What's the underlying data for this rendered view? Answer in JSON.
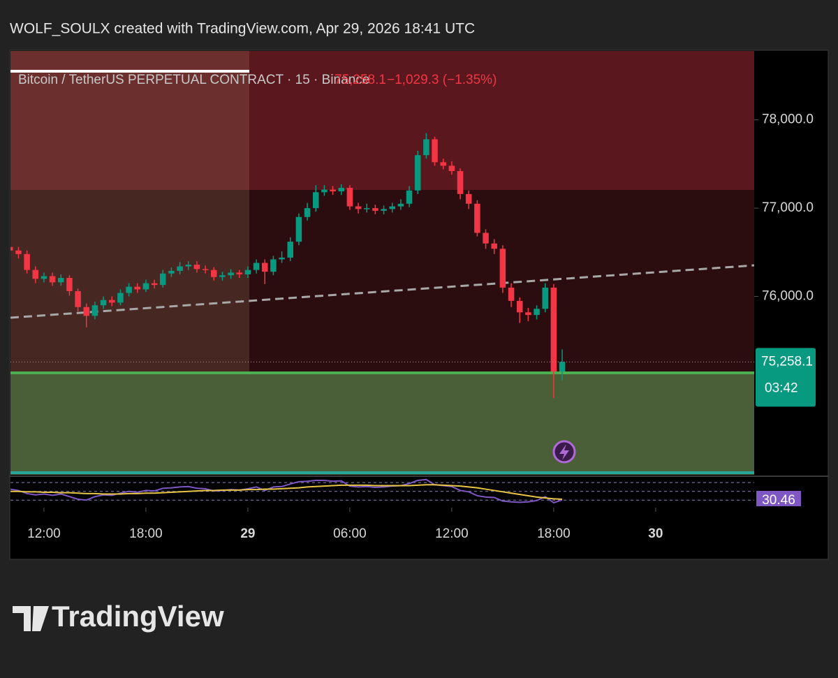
{
  "header": {
    "credit": "WOLF_SOULX created with TradingView.com, Apr 29, 2026 18:41 UTC"
  },
  "footer": {
    "brand": "TradingView"
  },
  "chart_data": {
    "type": "candlestick",
    "legend": {
      "symbol": "Bitcoin / TetherUS PERPETUAL CONTRACT · 15 · Binance",
      "price": "75,258.1",
      "change": "−1,029.3 (−1.35%)"
    },
    "last_price_label": "75,258.1",
    "countdown": "03:42",
    "up_color": "#089981",
    "down_color": "#f23645",
    "x": [
      10,
      10.5,
      11,
      11.5,
      12,
      12.5,
      13,
      13.5,
      14,
      14.5,
      15,
      15.5,
      16,
      16.5,
      17,
      17.5,
      18,
      18.5,
      19,
      19.5,
      20,
      20.5,
      21,
      21.5,
      22,
      22.5,
      23,
      23.5,
      24,
      24.5,
      25,
      25.5,
      26,
      26.5,
      27,
      27.5,
      28,
      28.5,
      29,
      29.5,
      30,
      30.5,
      31,
      31.5,
      32,
      32.5,
      33,
      33.5,
      34,
      34.5,
      35,
      35.5,
      36,
      36.5,
      37,
      37.5,
      38,
      38.5,
      39,
      39.5,
      40,
      40.5,
      41,
      41.5,
      42,
      42.5
    ],
    "open": [
      76560,
      76520,
      76480,
      76300,
      76200,
      76230,
      76160,
      76210,
      76060,
      75880,
      75780,
      75900,
      75960,
      75930,
      76040,
      76110,
      76080,
      76150,
      76130,
      76260,
      76290,
      76340,
      76360,
      76310,
      76300,
      76220,
      76240,
      76270,
      76250,
      76300,
      76380,
      76280,
      76420,
      76440,
      76620,
      76900,
      77000,
      77180,
      77210,
      77190,
      77230,
      77020,
      76990,
      77000,
      76970,
      76990,
      77020,
      77050,
      77200,
      77600,
      77780,
      77520,
      77480,
      77420,
      77160,
      77050,
      76720,
      76600,
      76540,
      76100,
      75950,
      75820,
      75790,
      75860,
      76100,
      75150
    ],
    "high": [
      76610,
      76560,
      76520,
      76340,
      76270,
      76270,
      76250,
      76240,
      76090,
      75920,
      75940,
      76000,
      76000,
      76080,
      76150,
      76150,
      76190,
      76190,
      76300,
      76330,
      76390,
      76400,
      76400,
      76350,
      76330,
      76280,
      76310,
      76300,
      76340,
      76420,
      76420,
      76460,
      76510,
      76670,
      76940,
      77060,
      77260,
      77260,
      77250,
      77270,
      77260,
      77060,
      77050,
      77040,
      77030,
      77060,
      77100,
      77250,
      77650,
      77850,
      77810,
      77560,
      77530,
      77450,
      77200,
      77090,
      76760,
      76650,
      76580,
      76150,
      75990,
      75870,
      75900,
      76150,
      76140,
      75400
    ],
    "low": [
      76470,
      76430,
      76260,
      76150,
      76160,
      76120,
      76120,
      76010,
      75830,
      75650,
      75740,
      75860,
      75890,
      75900,
      76000,
      76040,
      76050,
      76090,
      76100,
      76220,
      76250,
      76300,
      76270,
      76260,
      76180,
      76180,
      76200,
      76210,
      76210,
      76260,
      76140,
      76240,
      76380,
      76400,
      76580,
      76860,
      76960,
      77140,
      77150,
      77150,
      76980,
      76940,
      76950,
      76930,
      76930,
      76950,
      76980,
      77010,
      77160,
      77560,
      77480,
      77440,
      77380,
      77100,
      76990,
      76680,
      76540,
      76480,
      76040,
      75880,
      75700,
      75720,
      75740,
      75820,
      74850,
      75050
    ],
    "close": [
      76520,
      76480,
      76300,
      76200,
      76230,
      76160,
      76210,
      76060,
      75880,
      75780,
      75900,
      75960,
      75930,
      76040,
      76110,
      76080,
      76150,
      76130,
      76260,
      76290,
      76340,
      76360,
      76310,
      76300,
      76220,
      76240,
      76270,
      76250,
      76300,
      76380,
      76280,
      76420,
      76440,
      76620,
      76900,
      77000,
      77180,
      77210,
      77190,
      77230,
      77020,
      76990,
      77000,
      76970,
      76990,
      77020,
      77050,
      77200,
      77600,
      77780,
      77520,
      77480,
      77420,
      77160,
      77050,
      76720,
      76600,
      76540,
      76100,
      75950,
      75820,
      75790,
      75860,
      76100,
      75150,
      75258.1
    ],
    "xlim": [
      10.03,
      53.8
    ],
    "xticks": [
      {
        "value": 12,
        "label": "12:00"
      },
      {
        "value": 18,
        "label": "18:00"
      },
      {
        "value": 24,
        "label": "29"
      },
      {
        "value": 30,
        "label": "06:00"
      },
      {
        "value": 36,
        "label": "12:00"
      },
      {
        "value": 42,
        "label": "18:00"
      },
      {
        "value": 48,
        "label": "30"
      }
    ],
    "ylim": [
      73980,
      78780
    ],
    "yticks": [
      {
        "value": 76000,
        "label": "76,000.0"
      },
      {
        "value": 77000,
        "label": "77,000.0"
      },
      {
        "value": 78000,
        "label": "78,000.0"
      }
    ],
    "indicator": {
      "rsi": [
        55,
        52,
        45,
        42,
        44,
        41,
        44,
        38,
        32,
        30,
        38,
        42,
        41,
        46,
        50,
        48,
        52,
        51,
        57,
        58,
        60,
        61,
        57,
        56,
        51,
        52,
        54,
        53,
        56,
        60,
        52,
        60,
        61,
        67,
        72,
        73,
        75,
        75,
        73,
        74,
        62,
        60,
        61,
        59,
        60,
        62,
        63,
        68,
        75,
        77,
        65,
        63,
        61,
        52,
        49,
        40,
        37,
        36,
        28,
        26,
        25,
        26,
        29,
        38,
        24,
        30.46
      ],
      "rsi_color": "#7e57c2",
      "ma": [
        50,
        50,
        49,
        49,
        48,
        48,
        47,
        47,
        46,
        45,
        45,
        44,
        44,
        44,
        45,
        45,
        46,
        46,
        47,
        48,
        49,
        50,
        51,
        52,
        52,
        53,
        53,
        53,
        54,
        54,
        55,
        55,
        56,
        57,
        58,
        60,
        61,
        62,
        63,
        64,
        64,
        64,
        64,
        63,
        63,
        63,
        63,
        63,
        64,
        65,
        65,
        64,
        63,
        62,
        60,
        58,
        55,
        52,
        49,
        46,
        43,
        40,
        37,
        35,
        33,
        32
      ],
      "ma_color": "#e8c547",
      "label": "30.46",
      "ylim": [
        24,
        83
      ],
      "bands": [
        30,
        50,
        70
      ]
    }
  }
}
